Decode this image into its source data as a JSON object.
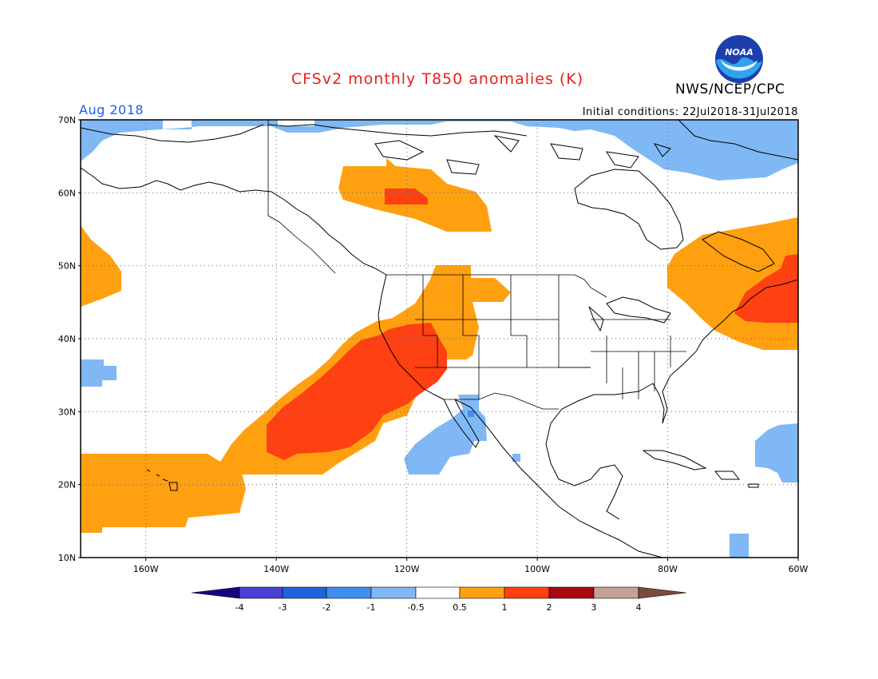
{
  "header": {
    "title": "CFSv2 monthly T850 anomalies (K)",
    "agency": "NWS/NCEP/CPC",
    "logo_text": "NOAA",
    "valid_month": "Aug 2018",
    "initial_conditions": "Initial conditions: 22Jul2018-31Jul2018"
  },
  "map": {
    "lat_labels": [
      "70N",
      "60N",
      "50N",
      "40N",
      "30N",
      "20N",
      "10N"
    ],
    "lon_labels": [
      "160W",
      "140W",
      "120W",
      "100W",
      "80W",
      "60W"
    ],
    "lat_range": [
      10,
      70
    ],
    "lon_range": [
      -170,
      -60
    ]
  },
  "colorbar": {
    "labels": [
      "-4",
      "-3",
      "-2",
      "-1",
      "-0.5",
      "0.5",
      "1",
      "2",
      "3",
      "4"
    ],
    "colors": [
      "#1a0080",
      "#4b3fd6",
      "#1f63db",
      "#3f8ef0",
      "#7fb8f5",
      "#ffffff",
      "#ffa010",
      "#ff4012",
      "#aa0810",
      "#c7a097",
      "#7b4b3c"
    ]
  }
}
